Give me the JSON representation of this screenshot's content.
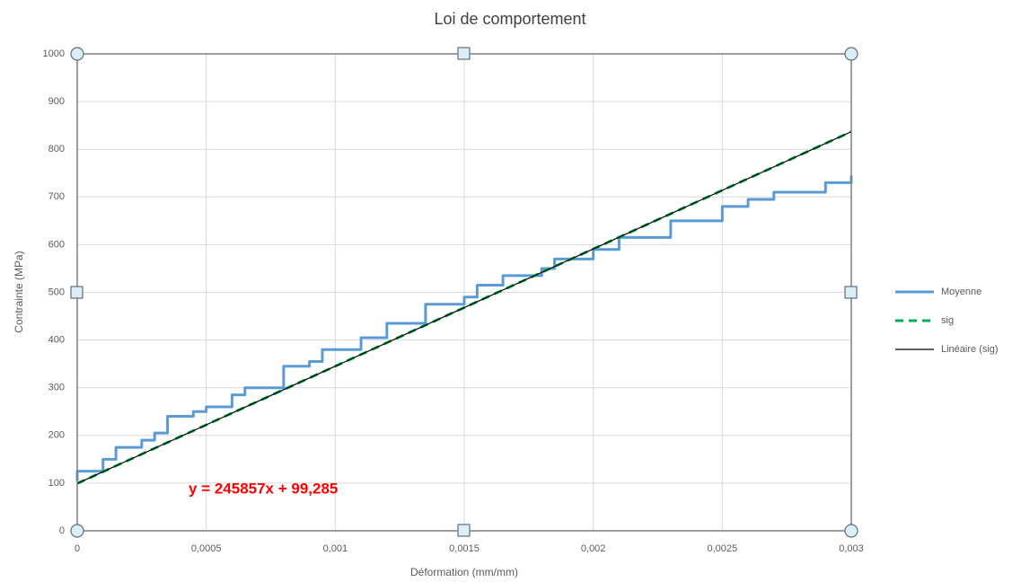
{
  "chart_data": {
    "type": "line",
    "title": "Loi de comportement",
    "x_label": "Déformation (mm/mm)",
    "y_label": "Contrainte (MPa)",
    "annotation": "y = 245857x + 99,285",
    "xlim": [
      0,
      0.003
    ],
    "xticks": [
      0,
      {
        "value": 0.0005,
        "label": "0,0005"
      },
      {
        "value": 0.001,
        "label": "0,001"
      },
      {
        "value": 0.0015,
        "label": "0,0015"
      },
      {
        "value": 0.002,
        "label": "0,002"
      },
      {
        "value": 0.0025,
        "label": "0,0025"
      },
      {
        "value": 0.003,
        "label": "0,003"
      }
    ],
    "ylim": [
      0,
      1000
    ],
    "yticks": [
      0,
      100,
      200,
      300,
      400,
      500,
      600,
      700,
      800,
      900,
      1000
    ],
    "grid": true,
    "legend": "right",
    "series": [
      {
        "name": "Moyenne",
        "color": "#5b9bd5",
        "dash": "solid",
        "width": 3,
        "x": [
          0,
          0,
          0.0001,
          0.0001,
          0.00015,
          0.00015,
          0.00025,
          0.00025,
          0.0003,
          0.0003,
          0.00035,
          0.00035,
          0.00045,
          0.00045,
          0.0005,
          0.0005,
          0.0006,
          0.0006,
          0.00065,
          0.00065,
          0.0008,
          0.0008,
          0.0009,
          0.0009,
          0.00095,
          0.00095,
          0.0011,
          0.0011,
          0.0012,
          0.0012,
          0.00135,
          0.00135,
          0.0015,
          0.0015,
          0.00155,
          0.00155,
          0.00165,
          0.00165,
          0.0018,
          0.0018,
          0.00185,
          0.00185,
          0.002,
          0.002,
          0.0021,
          0.0021,
          0.0023,
          0.0023,
          0.0025,
          0.0025,
          0.0026,
          0.0026,
          0.0027,
          0.0027,
          0.0029,
          0.0029,
          0.003,
          0.003
        ],
        "values": [
          105,
          125,
          125,
          150,
          150,
          175,
          175,
          190,
          190,
          205,
          205,
          240,
          240,
          250,
          250,
          260,
          260,
          285,
          285,
          300,
          300,
          345,
          345,
          355,
          355,
          380,
          380,
          405,
          405,
          435,
          435,
          475,
          475,
          490,
          490,
          515,
          515,
          535,
          535,
          550,
          550,
          570,
          570,
          590,
          590,
          615,
          615,
          650,
          650,
          680,
          680,
          695,
          695,
          710,
          710,
          730,
          730,
          745
        ]
      },
      {
        "name": "sig",
        "color": "#00b050",
        "dash": "dashed",
        "width": 3,
        "x": [
          0,
          0.003
        ],
        "values": [
          99.285,
          836.856
        ]
      },
      {
        "name": "Linéaire (sig)",
        "color": "#000000",
        "dash": "solid",
        "width": 1.2,
        "x": [
          0,
          0.003
        ],
        "values": [
          99.285,
          836.856
        ]
      }
    ]
  }
}
